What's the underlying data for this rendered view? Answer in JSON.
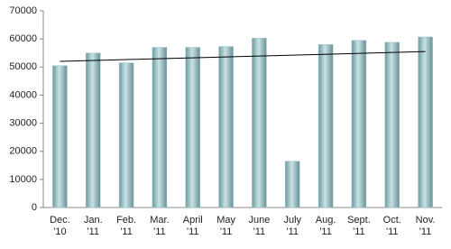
{
  "chart_data": {
    "type": "bar",
    "categories": [
      [
        "Dec.",
        "'10"
      ],
      [
        "Jan.",
        "'11"
      ],
      [
        "Feb.",
        "'11"
      ],
      [
        "Mar.",
        "'11"
      ],
      [
        "April",
        "'11"
      ],
      [
        "May",
        "'11"
      ],
      [
        "June",
        "'11"
      ],
      [
        "July",
        "'11"
      ],
      [
        "Aug.",
        "'11"
      ],
      [
        "Sept.",
        "'11"
      ],
      [
        "Oct.",
        "'11"
      ],
      [
        "Nov.",
        "'11"
      ]
    ],
    "values": [
      50500,
      55000,
      51500,
      57000,
      57000,
      57300,
      60300,
      16500,
      58000,
      59500,
      58800,
      60700
    ],
    "color": "#9cc7cb",
    "trendline": [
      52000,
      55500
    ],
    "ylim": [
      0,
      70000
    ],
    "yticks": [
      0,
      10000,
      20000,
      30000,
      40000,
      50000,
      60000,
      70000
    ],
    "grid": false
  }
}
